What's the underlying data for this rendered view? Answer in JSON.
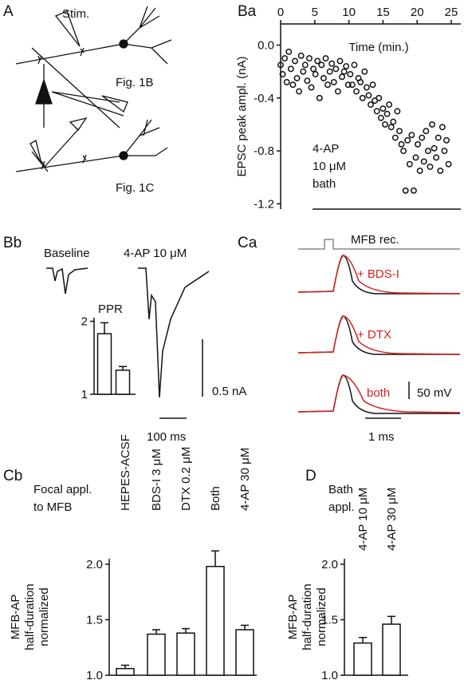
{
  "labels": {
    "panels": [
      "A",
      "Ba",
      "Bb",
      "Ca",
      "Cb",
      "D"
    ],
    "diagram": [
      "Stim.",
      "Fig. 1B",
      "Fig. 1C"
    ],
    "bath_annotation": [
      "4-AP",
      "10 μM",
      "bath"
    ],
    "traces_b": [
      "Baseline",
      "4-AP 10 μM",
      "0.5 nA",
      "100 ms"
    ],
    "traces_c": [
      "MFB rec.",
      "+ BDS-I",
      "+ DTX",
      "both",
      "50 mV",
      "1 ms"
    ],
    "cb_title": [
      "Focal appl.",
      "to MFB"
    ],
    "d_title": [
      "Bath",
      "appl."
    ]
  },
  "chart_data": [
    {
      "type": "scatter",
      "xlabel": "Time (min.)",
      "ylabel": "EPSC peak ampl. (nA)",
      "xlim": [
        0,
        26.4
      ],
      "xticks": [
        0,
        5,
        10,
        15,
        20,
        25
      ],
      "ylim": [
        -1.24,
        0.16
      ],
      "yticks": [
        {
          "value": 0,
          "label": "0.0"
        },
        -0.4,
        -0.8,
        -1.2
      ],
      "x": [
        0,
        0.3,
        0.6,
        0.9,
        1.2,
        1.5,
        1.8,
        2.1,
        2.4,
        2.7,
        3,
        3.3,
        3.6,
        3.9,
        4.2,
        4.5,
        4.8,
        5.1,
        5.4,
        5.7,
        6,
        6.3,
        6.6,
        6.9,
        7.2,
        7.5,
        7.8,
        8.1,
        8.4,
        8.7,
        9,
        9.3,
        9.6,
        9.9,
        10.2,
        10.5,
        10.8,
        11.1,
        11.4,
        11.7,
        12,
        12.3,
        12.6,
        12.9,
        13.2,
        13.5,
        13.8,
        14.1,
        14.4,
        14.7,
        15,
        15.3,
        15.6,
        15.9,
        16.2,
        16.5,
        16.8,
        17.1,
        17.4,
        17.7,
        18,
        18.3,
        18.6,
        18.9,
        19.2,
        19.5,
        19.8,
        20.1,
        20.4,
        20.7,
        21,
        21.3,
        21.6,
        21.9,
        22.2,
        22.5,
        22.8,
        23.1,
        23.4,
        23.7,
        24,
        24.3,
        24.6
      ],
      "values": [
        -0.15,
        -0.22,
        -0.1,
        -0.28,
        -0.05,
        -0.18,
        -0.3,
        -0.12,
        -0.25,
        -0.35,
        -0.08,
        -0.2,
        -0.15,
        -0.27,
        -0.1,
        -0.32,
        -0.18,
        -0.22,
        -0.12,
        -0.4,
        -0.15,
        -0.25,
        -0.1,
        -0.3,
        -0.2,
        -0.14,
        -0.28,
        -0.18,
        -0.35,
        -0.12,
        -0.24,
        -0.2,
        -0.16,
        -0.3,
        -0.22,
        -0.3,
        -0.15,
        -0.35,
        -0.25,
        -0.28,
        -0.4,
        -0.2,
        -0.32,
        -0.38,
        -0.45,
        -0.3,
        -0.42,
        -0.5,
        -0.4,
        -0.55,
        -0.48,
        -0.6,
        -0.52,
        -0.45,
        -0.62,
        -0.58,
        -0.7,
        -0.5,
        -0.65,
        -0.75,
        -0.8,
        -1.1,
        -0.72,
        -0.9,
        -0.68,
        -1.1,
        -0.85,
        -0.75,
        -0.95,
        -0.7,
        -0.88,
        -0.65,
        -0.8,
        -0.92,
        -0.6,
        -0.78,
        -0.85,
        -0.7,
        -0.95,
        -0.62,
        -0.8,
        -0.72,
        -0.9
      ],
      "color": "#111111"
    },
    {
      "type": "bar",
      "title": "PPR",
      "categories": [
        null,
        null
      ],
      "values": [
        1.83,
        1.33
      ],
      "errors": [
        0.15,
        0.05
      ],
      "ylim": [
        1,
        2.05
      ],
      "yticks": [
        1,
        2
      ],
      "color": "#ffffff"
    },
    {
      "type": "bar",
      "ylabel": [
        "MFB-AP",
        "half-duration",
        "normalized"
      ],
      "categories": [
        "HEPES-ACSF",
        "BDS-I 3 μM",
        "DTX 0.2 μM",
        "Both",
        "4-AP 30 μM"
      ],
      "values": [
        1.06,
        1.37,
        1.38,
        1.98,
        1.41
      ],
      "errors": [
        0.03,
        0.04,
        0.04,
        0.14,
        0.04
      ],
      "ylim": [
        1,
        2.05
      ],
      "yticks": [
        {
          "value": 1,
          "label": "1.0"
        },
        1.5,
        {
          "value": 2,
          "label": "2.0"
        }
      ],
      "color": "#ffffff"
    },
    {
      "type": "bar",
      "ylabel": [
        "MFB-AP",
        "half-duration",
        "normalized"
      ],
      "categories": [
        "4-AP 10 μM",
        "4-AP 30 μM"
      ],
      "values": [
        1.29,
        1.46
      ],
      "errors": [
        0.05,
        0.07
      ],
      "ylim": [
        1,
        2.05
      ],
      "yticks": [
        {
          "value": 1,
          "label": "1.0"
        },
        1.5,
        {
          "value": 2,
          "label": "2.0"
        }
      ],
      "color": "#ffffff"
    }
  ]
}
